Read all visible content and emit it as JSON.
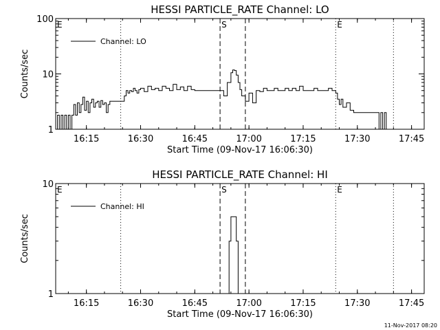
{
  "footer_timestamp": "11-Nov-2017 08:20",
  "chart_data": [
    {
      "type": "line",
      "title": "HESSI PARTICLE_RATE Channel: LO",
      "xlabel": "Start Time (09-Nov-17 16:06:30)",
      "ylabel": "Counts/sec",
      "yscale": "log",
      "ylim": [
        1,
        100
      ],
      "xlim": [
        "16:06:30",
        "17:48:30"
      ],
      "y_tick_labels": [
        "1",
        "10",
        "100"
      ],
      "x_tick_labels": [
        "16:15",
        "16:30",
        "16:45",
        "17:00",
        "17:15",
        "17:30",
        "17:45"
      ],
      "grid": false,
      "legend": {
        "placement": "top-left",
        "entries": [
          "Channel: LO"
        ]
      },
      "series": [
        {
          "name": "Channel: LO",
          "x": [
            "16:06:30",
            "16:07:00",
            "16:07:30",
            "16:08:00",
            "16:08:30",
            "16:09:00",
            "16:09:30",
            "16:10:00",
            "16:10:30",
            "16:11:00",
            "16:11:30",
            "16:12:00",
            "16:12:30",
            "16:13:00",
            "16:13:30",
            "16:14:00",
            "16:14:30",
            "16:15:00",
            "16:15:30",
            "16:16:00",
            "16:16:30",
            "16:17:00",
            "16:17:30",
            "16:18:00",
            "16:18:30",
            "16:19:00",
            "16:19:30",
            "16:20:00",
            "16:20:30",
            "16:21:00",
            "16:21:30",
            "16:22:00",
            "16:23:00",
            "16:24:00",
            "16:25:00",
            "16:25:30",
            "16:26:00",
            "16:26:30",
            "16:27:00",
            "16:27:30",
            "16:28:00",
            "16:28:30",
            "16:29:00",
            "16:29:30",
            "16:30:00",
            "16:31:00",
            "16:32:00",
            "16:33:00",
            "16:34:00",
            "16:35:00",
            "16:36:00",
            "16:37:00",
            "16:38:00",
            "16:39:00",
            "16:40:00",
            "16:41:00",
            "16:42:00",
            "16:43:00",
            "16:44:00",
            "16:45:00",
            "16:46:00",
            "16:47:00",
            "16:48:00",
            "16:49:00",
            "16:50:00",
            "16:51:00",
            "16:52:00",
            "16:53:00",
            "16:54:00",
            "16:55:00",
            "16:55:30",
            "16:56:00",
            "16:56:30",
            "16:57:00",
            "16:57:30",
            "16:58:00",
            "16:59:00",
            "17:00:00",
            "17:01:00",
            "17:02:00",
            "17:03:00",
            "17:04:00",
            "17:05:00",
            "17:06:00",
            "17:07:00",
            "17:08:00",
            "17:09:00",
            "17:10:00",
            "17:11:00",
            "17:12:00",
            "17:13:00",
            "17:14:00",
            "17:15:00",
            "17:16:00",
            "17:17:00",
            "17:18:00",
            "17:19:00",
            "17:20:00",
            "17:21:00",
            "17:22:00",
            "17:23:00",
            "17:24:00",
            "17:24:30",
            "17:25:00",
            "17:25:30",
            "17:26:00",
            "17:27:00",
            "17:28:00",
            "17:29:00",
            "17:30:00",
            "17:31:00",
            "17:32:00",
            "17:33:00",
            "17:34:00",
            "17:35:00",
            "17:35:30",
            "17:36:00",
            "17:36:30",
            "17:37:00",
            "17:37:30",
            "17:38:00",
            "17:39:00"
          ],
          "y": [
            1.0,
            1.8,
            1.0,
            1.8,
            1.0,
            1.8,
            1.0,
            1.8,
            1.0,
            1.8,
            2.8,
            1.8,
            3.0,
            2.0,
            2.8,
            3.8,
            2.2,
            3.2,
            2.0,
            3.0,
            3.5,
            2.5,
            3.0,
            3.2,
            2.5,
            3.3,
            2.8,
            3.0,
            2.0,
            2.8,
            3.2,
            3.2,
            3.2,
            3.2,
            3.2,
            4.0,
            5.0,
            4.5,
            5.0,
            4.8,
            5.5,
            5.0,
            4.5,
            5.2,
            5.5,
            4.8,
            6.0,
            5.2,
            5.5,
            5.0,
            6.0,
            5.5,
            5.0,
            6.5,
            5.2,
            5.8,
            5.0,
            6.0,
            5.2,
            5.0,
            5.0,
            5.0,
            5.0,
            5.0,
            5.0,
            5.0,
            5.0,
            4.0,
            7.0,
            10.5,
            11.8,
            11.5,
            9.5,
            7.0,
            5.2,
            4.0,
            3.2,
            4.5,
            3.0,
            5.0,
            4.8,
            5.5,
            5.0,
            5.0,
            5.5,
            5.0,
            5.0,
            5.5,
            5.0,
            5.5,
            5.0,
            6.0,
            5.0,
            5.0,
            5.0,
            5.5,
            5.0,
            5.0,
            5.0,
            5.5,
            5.0,
            4.5,
            3.5,
            2.8,
            3.5,
            2.5,
            3.0,
            2.2,
            2.0,
            2.0,
            2.0,
            2.0,
            2.0,
            2.0,
            2.0,
            2.0,
            1.0,
            2.0,
            1.0,
            2.0,
            1.0,
            1.0
          ]
        }
      ],
      "annotations": {
        "labels": [
          {
            "text": "E",
            "time": "16:06:30"
          },
          {
            "text": "S",
            "time": "16:52:00"
          },
          {
            "text": "E",
            "time": "17:24:00"
          }
        ],
        "dashed_lines": [
          "16:52:00",
          "16:59:00"
        ],
        "dotted_lines": [
          "16:24:30",
          "17:24:00",
          "17:40:00"
        ]
      }
    },
    {
      "type": "line",
      "title": "HESSI PARTICLE_RATE Channel: HI",
      "xlabel": "Start Time (09-Nov-17 16:06:30)",
      "ylabel": "Counts/sec",
      "yscale": "log",
      "ylim": [
        1,
        10
      ],
      "xlim": [
        "16:06:30",
        "17:48:30"
      ],
      "y_tick_labels": [
        "1",
        "10"
      ],
      "x_tick_labels": [
        "16:15",
        "16:30",
        "16:45",
        "17:00",
        "17:15",
        "17:30",
        "17:45"
      ],
      "grid": false,
      "legend": {
        "placement": "top-left",
        "entries": [
          "Channel: HI"
        ]
      },
      "series": [
        {
          "name": "Channel: HI",
          "x": [
            "16:54:00",
            "16:54:30",
            "16:55:00",
            "16:55:30",
            "16:56:00",
            "16:56:30",
            "16:57:00"
          ],
          "y": [
            1.0,
            3.0,
            5.0,
            5.0,
            5.0,
            3.0,
            1.0
          ]
        }
      ],
      "annotations": {
        "labels": [
          {
            "text": "E",
            "time": "16:06:30"
          },
          {
            "text": "S",
            "time": "16:52:00"
          },
          {
            "text": "E",
            "time": "17:24:00"
          }
        ],
        "dashed_lines": [
          "16:52:00",
          "16:59:00"
        ],
        "dotted_lines": [
          "16:24:30",
          "17:24:00",
          "17:40:00"
        ]
      }
    }
  ]
}
